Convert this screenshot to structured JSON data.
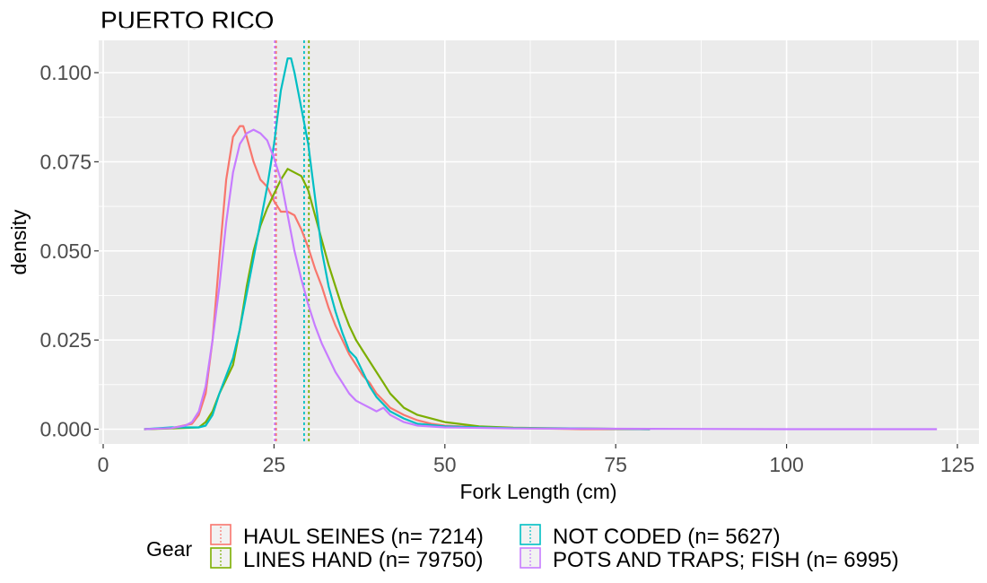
{
  "chart_data": {
    "type": "line",
    "title": "PUERTO RICO",
    "xlabel": "Fork Length (cm)",
    "ylabel": "density",
    "xlim": [
      0,
      125
    ],
    "ylim": [
      0,
      0.105
    ],
    "xticks": [
      0,
      25,
      50,
      75,
      100,
      125
    ],
    "xtick_labels": [
      "0",
      "25",
      "50",
      "75",
      "100",
      "125"
    ],
    "yticks": [
      0,
      0.025,
      0.05,
      0.075,
      0.1
    ],
    "ytick_labels": [
      "0.000",
      "0.025",
      "0.050",
      "0.075",
      "0.100"
    ],
    "grid": true,
    "background": "#ebebeb",
    "legend": {
      "title": "Gear",
      "position": "bottom",
      "entries": [
        "HAUL SEINES (n= 7214)",
        "LINES HAND (n= 79750)",
        "NOT CODED (n= 5627)",
        "POTS AND TRAPS; FISH (n= 6995)"
      ]
    },
    "series": [
      {
        "name": "HAUL SEINES (n= 7214)",
        "color": "#F8766D",
        "mean": 25.3,
        "x": [
          6,
          10,
          13,
          14,
          15,
          16,
          17,
          18,
          19,
          20,
          20.5,
          21,
          22,
          23,
          24,
          25,
          26,
          27,
          28,
          29,
          30,
          31,
          32,
          33,
          34,
          35,
          36,
          37,
          38,
          39,
          40,
          41,
          42,
          44,
          46,
          48,
          50,
          55,
          60,
          70,
          80
        ],
        "y": [
          0,
          0.0003,
          0.0015,
          0.004,
          0.01,
          0.025,
          0.048,
          0.07,
          0.082,
          0.085,
          0.085,
          0.082,
          0.075,
          0.07,
          0.068,
          0.064,
          0.061,
          0.061,
          0.06,
          0.056,
          0.051,
          0.045,
          0.04,
          0.034,
          0.029,
          0.025,
          0.021,
          0.018,
          0.015,
          0.013,
          0.01,
          0.008,
          0.006,
          0.004,
          0.0025,
          0.0015,
          0.001,
          0.0005,
          0.0003,
          0,
          0
        ]
      },
      {
        "name": "LINES HAND (n= 79750)",
        "color": "#7CAE00",
        "mean": 30.1,
        "x": [
          6,
          10,
          14,
          15,
          16,
          17,
          18,
          19,
          20,
          21,
          22,
          23,
          24,
          25,
          26,
          27,
          28,
          29,
          30,
          31,
          32,
          33,
          34,
          35,
          36,
          37,
          38,
          39,
          40,
          41,
          42,
          43,
          44,
          46,
          48,
          50,
          55,
          60,
          65,
          70,
          75,
          80
        ],
        "y": [
          0,
          0.0002,
          0.0005,
          0.002,
          0.005,
          0.01,
          0.014,
          0.018,
          0.028,
          0.04,
          0.05,
          0.057,
          0.062,
          0.066,
          0.07,
          0.073,
          0.072,
          0.071,
          0.067,
          0.06,
          0.053,
          0.046,
          0.04,
          0.034,
          0.029,
          0.025,
          0.022,
          0.019,
          0.016,
          0.013,
          0.01,
          0.008,
          0.006,
          0.004,
          0.003,
          0.002,
          0.0008,
          0.0004,
          0.0003,
          0.0002,
          0.0001,
          0
        ]
      },
      {
        "name": "NOT CODED (n= 5627)",
        "color": "#00BFC4",
        "mean": 29.4,
        "x": [
          6,
          10,
          14,
          15,
          16,
          17,
          18,
          19,
          20,
          21,
          22,
          23,
          24,
          25,
          26,
          27,
          27.5,
          28,
          29,
          30,
          31,
          32,
          33,
          34,
          35,
          36,
          37,
          38,
          39,
          40,
          42,
          44,
          46,
          50,
          55,
          60,
          70,
          80
        ],
        "y": [
          0,
          0.0005,
          0.0005,
          0.001,
          0.004,
          0.01,
          0.015,
          0.02,
          0.028,
          0.038,
          0.048,
          0.058,
          0.068,
          0.08,
          0.095,
          0.104,
          0.104,
          0.1,
          0.09,
          0.08,
          0.065,
          0.05,
          0.04,
          0.033,
          0.027,
          0.022,
          0.02,
          0.016,
          0.012,
          0.009,
          0.005,
          0.003,
          0.0015,
          0.0008,
          0.0005,
          0.0003,
          0.0002,
          0
        ]
      },
      {
        "name": "POTS AND TRAPS; FISH (n= 6995)",
        "color": "#C77CFF",
        "mean": 25.1,
        "x": [
          6,
          10,
          12,
          13,
          14,
          15,
          16,
          17,
          18,
          19,
          20,
          21,
          22,
          23,
          24,
          25,
          26,
          27,
          28,
          29,
          30,
          31,
          32,
          33,
          34,
          35,
          36,
          37,
          38,
          39,
          40,
          41,
          42,
          43,
          44,
          46,
          50,
          60,
          80,
          100,
          122
        ],
        "y": [
          0,
          0.0003,
          0.001,
          0.002,
          0.005,
          0.012,
          0.025,
          0.04,
          0.058,
          0.072,
          0.08,
          0.083,
          0.084,
          0.083,
          0.081,
          0.076,
          0.07,
          0.06,
          0.05,
          0.042,
          0.035,
          0.029,
          0.024,
          0.02,
          0.016,
          0.013,
          0.01,
          0.008,
          0.007,
          0.006,
          0.005,
          0.006,
          0.004,
          0.003,
          0.002,
          0.001,
          0.0005,
          0.0002,
          0.0001,
          0,
          0
        ]
      }
    ]
  }
}
